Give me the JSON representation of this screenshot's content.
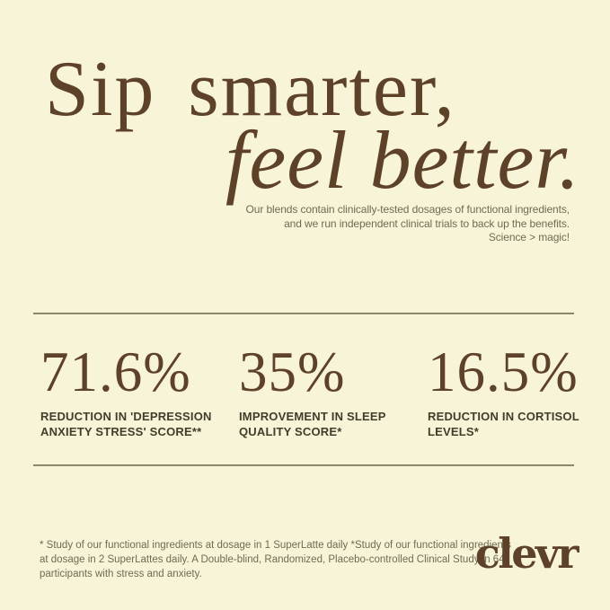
{
  "page": {
    "type": "marketing-card",
    "colors": {
      "background": "#f8f4d7",
      "brand_brown": "#5e4129",
      "muted_olive_text": "#6f6b56",
      "stat_label_text": "#413d2c",
      "divider": "#7b765c"
    }
  },
  "hero": {
    "title_line1": "Sip smarter,",
    "title_line2": "feel better.",
    "subtitle_lines": [
      "Our blends contain clinically-tested dosages of functional ingredients,",
      "and we run independent clinical trials to back up the benefits.",
      "Science > magic!"
    ]
  },
  "stats": {
    "items": [
      {
        "value": "71.6%",
        "label_lines": [
          "REDUCTION IN 'DEPRESSION",
          "ANXIETY STRESS' SCORE**"
        ]
      },
      {
        "value": "35%",
        "label_lines": [
          "IMPROVEMENT IN SLEEP",
          "QUALITY SCORE*"
        ]
      },
      {
        "value": "16.5%",
        "label_lines": [
          "REDUCTION IN CORTISOL",
          "LEVELS*"
        ]
      }
    ]
  },
  "footer": {
    "footnote_lines": [
      "* Study of our functional ingredients at dosage in 1 SuperLatte daily *Study of our functional ingredients",
      "at dosage in 2 SuperLattes daily. A Double-blind, Randomized, Placebo-controlled Clinical Study in 64",
      "participants with stress and anxiety."
    ],
    "logo_text": "clevr"
  }
}
